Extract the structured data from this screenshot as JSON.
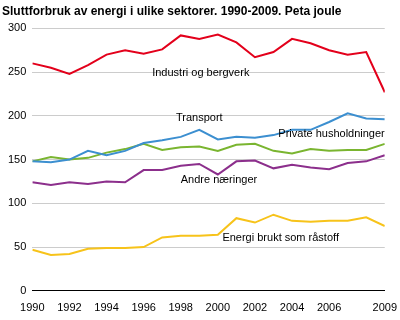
{
  "chart_data": {
    "type": "line",
    "title": "Sluttforbruk av energi i ulike sektorer. 1990-2009. Peta joule",
    "categories": [
      "1990",
      null,
      "1992",
      null,
      "1994",
      null,
      "1996",
      null,
      "1998",
      null,
      "2000",
      null,
      "2002",
      null,
      "2004",
      null,
      "2006",
      null,
      null,
      "2009"
    ],
    "series": [
      {
        "name": "Industri og bergverk",
        "color": "#e3001b",
        "values": [
          260,
          255,
          248,
          258,
          270,
          275,
          271,
          276,
          292,
          288,
          293,
          284,
          267,
          273,
          288,
          283,
          275,
          270,
          273,
          227
        ]
      },
      {
        "name": "Transport",
        "color": "#3c8fd0",
        "values": [
          148,
          147,
          150,
          160,
          155,
          160,
          169,
          172,
          176,
          184,
          173,
          176,
          175,
          178,
          184,
          184,
          193,
          203,
          197,
          196
        ]
      },
      {
        "name": "Private husholdninger",
        "color": "#7ab530",
        "values": [
          148,
          153,
          150,
          152,
          158,
          162,
          168,
          161,
          164,
          165,
          160,
          167,
          168,
          160,
          157,
          162,
          160,
          161,
          161,
          168
        ]
      },
      {
        "name": "Andre næringer",
        "color": "#8c2f8c",
        "values": [
          124,
          121,
          124,
          122,
          125,
          124,
          138,
          138,
          143,
          145,
          133,
          148,
          149,
          140,
          144,
          141,
          139,
          146,
          148,
          155
        ]
      },
      {
        "name": "Energi brukt som råstoff",
        "color": "#f7c31a",
        "values": [
          47,
          41,
          42,
          48,
          49,
          49,
          50,
          61,
          63,
          63,
          64,
          83,
          78,
          87,
          80,
          79,
          80,
          80,
          84,
          74
        ]
      }
    ],
    "ylim": [
      0,
      300
    ],
    "yticks": [
      0,
      50,
      100,
      150,
      200,
      250,
      300
    ],
    "grid": true
  }
}
